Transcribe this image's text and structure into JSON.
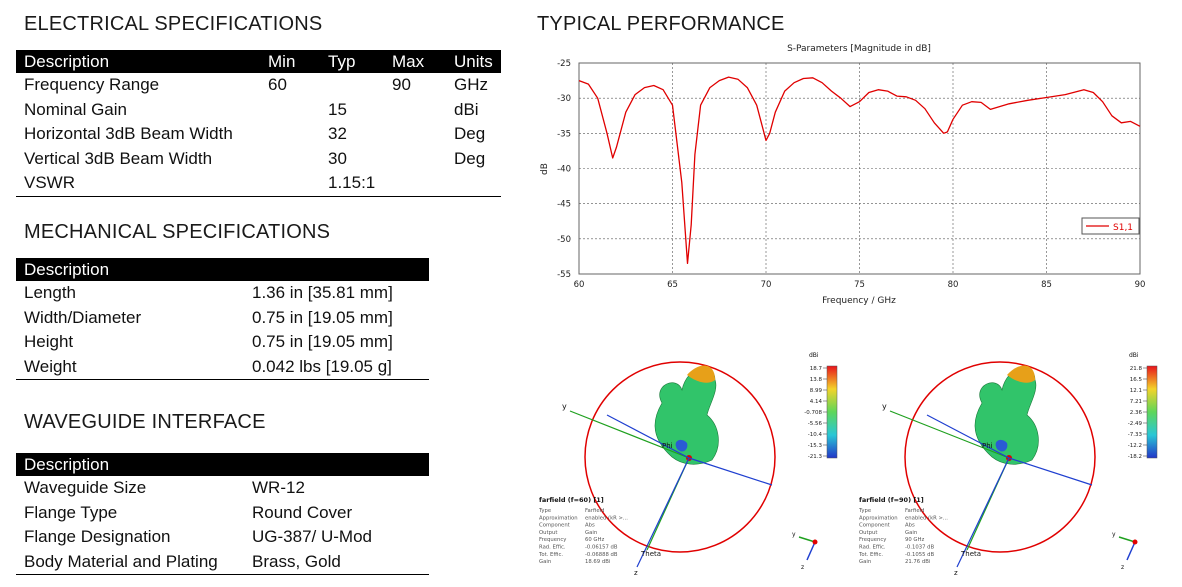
{
  "sections": {
    "electrical": "ELECTRICAL SPECIFICATIONS",
    "mechanical": "MECHANICAL SPECIFICATIONS",
    "waveguide": "WAVEGUIDE INTERFACE",
    "performance": "TYPICAL PERFORMANCE"
  },
  "electrical": {
    "headers": [
      "Description",
      "Min",
      "Typ",
      "Max",
      "Units"
    ],
    "rows": [
      [
        "Frequency Range",
        "60",
        "",
        "90",
        "GHz"
      ],
      [
        "Nominal Gain",
        "",
        "15",
        "",
        "dBi"
      ],
      [
        "Horizontal 3dB Beam Width",
        "",
        "32",
        "",
        "Deg"
      ],
      [
        "Vertical 3dB Beam Width",
        "",
        "30",
        "",
        "Deg"
      ],
      [
        "VSWR",
        "",
        "1.15:1",
        "",
        ""
      ]
    ]
  },
  "mechanical": {
    "header": "Description",
    "rows": [
      [
        "Length",
        "1.36 in [35.81 mm]"
      ],
      [
        "Width/Diameter",
        "0.75 in [19.05 mm]"
      ],
      [
        "Height",
        "0.75 in [19.05 mm]"
      ],
      [
        "Weight",
        "0.042 lbs [19.05 g]"
      ]
    ]
  },
  "waveguide": {
    "header": "Description",
    "rows": [
      [
        "Waveguide Size",
        "WR-12"
      ],
      [
        "Flange Type",
        "Round Cover"
      ],
      [
        "Flange Designation",
        "UG-387/ U-Mod"
      ],
      [
        "Body Material and Plating",
        "Brass, Gold"
      ]
    ]
  },
  "chart_data": {
    "type": "line",
    "title": "S-Parameters [Magnitude in dB]",
    "xlabel": "Frequency / GHz",
    "ylabel": "dB",
    "xlim": [
      60,
      90
    ],
    "ylim": [
      -55,
      -25
    ],
    "xticks": [
      60,
      65,
      70,
      75,
      80,
      85,
      90
    ],
    "yticks": [
      -25,
      -30,
      -35,
      -40,
      -45,
      -50,
      -55
    ],
    "grid": true,
    "legend_position": "right",
    "series": [
      {
        "name": "S1,1",
        "color": "#e00000",
        "x": [
          60,
          60.5,
          61,
          61.5,
          61.8,
          62,
          62.5,
          63,
          63.5,
          64,
          64.5,
          65,
          65.5,
          65.8,
          66,
          66.2,
          66.5,
          67,
          67.5,
          68,
          68.5,
          69,
          69.5,
          70,
          70.2,
          70.5,
          71,
          71.5,
          72,
          72.5,
          73,
          73.5,
          74,
          74.5,
          75,
          75.5,
          76,
          76.5,
          77,
          77.5,
          78,
          78.5,
          79,
          79.5,
          79.7,
          80,
          80.5,
          81,
          81.5,
          82,
          83,
          84,
          85,
          86,
          87,
          87.5,
          88,
          88.5,
          89,
          89.5,
          90
        ],
        "y": [
          -27.5,
          -28,
          -30,
          -35,
          -38.5,
          -37,
          -32,
          -29.5,
          -28.5,
          -28.2,
          -28.8,
          -31,
          -42,
          -53.5,
          -48,
          -38,
          -31,
          -28.5,
          -27.5,
          -27,
          -27.3,
          -28.5,
          -31,
          -36,
          -35,
          -32,
          -29,
          -27.8,
          -27.2,
          -27.1,
          -27.8,
          -29,
          -30,
          -31.2,
          -30.5,
          -29.2,
          -28.8,
          -29,
          -29.7,
          -29.8,
          -30.3,
          -31.5,
          -33.5,
          -35,
          -34.8,
          -33,
          -31,
          -30.5,
          -30.6,
          -31.6,
          -30.8,
          -30.3,
          -29.9,
          -29.5,
          -28.8,
          -29.2,
          -30.5,
          -32.5,
          -33.5,
          -33.3,
          -34
        ]
      }
    ]
  },
  "farfield_left": {
    "title": "farfield (f=60) [1]",
    "colorbar_unit": "dBi",
    "colorbar_ticks": [
      "18.7",
      "13.8",
      "8.99",
      "4.14",
      "-0.708",
      "-5.56",
      "-10.4",
      "-15.3",
      "-21.3"
    ],
    "axes": {
      "y": "y",
      "phi": "Phi",
      "theta": "Theta",
      "z": "z"
    },
    "info_keys": [
      "Type",
      "Approximation",
      "Component",
      "Output",
      "Frequency",
      "Rad. Effic.",
      "Tot. Effic.",
      "Gain"
    ],
    "info_values": [
      "Farfield",
      "enabled (kR >...",
      "Abs",
      "Gain",
      "60 GHz",
      "-0.06157 dB",
      "-0.06888 dB",
      "18.69 dBi"
    ]
  },
  "farfield_right": {
    "title": "farfield (f=90) [1]",
    "colorbar_unit": "dBi",
    "colorbar_ticks": [
      "21.8",
      "16.5",
      "12.1",
      "7.21",
      "2.36",
      "-2.49",
      "-7.33",
      "-12.2",
      "-18.2"
    ],
    "axes": {
      "y": "y",
      "phi": "Phi",
      "theta": "Theta",
      "z": "z"
    },
    "info_keys": [
      "Type",
      "Approximation",
      "Component",
      "Output",
      "Frequency",
      "Rad. Effic.",
      "Tot. Effic.",
      "Gain"
    ],
    "info_values": [
      "Farfield",
      "enabled (kR >...",
      "Abs",
      "Gain",
      "90 GHz",
      "-0.1037 dB",
      "-0.1055 dB",
      "21.76 dBi"
    ]
  }
}
